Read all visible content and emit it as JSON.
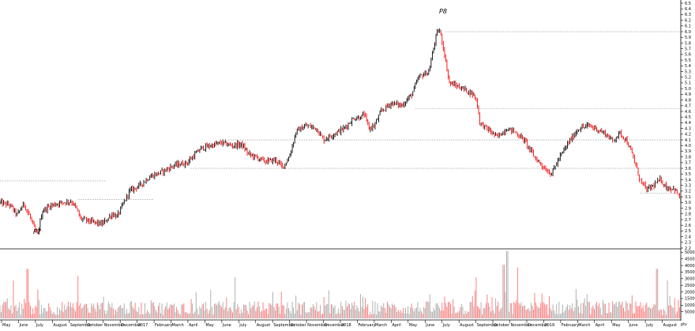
{
  "chart_data": {
    "type": "candlestick",
    "price_axis": {
      "ticks": [
        "2.2",
        "2.3",
        "2.4",
        "2.5",
        "2.6",
        "2.7",
        "2.8",
        "2.9",
        "3.0",
        "3.1",
        "3.2",
        "3.3",
        "3.4",
        "3.5",
        "3.6",
        "3.7",
        "3.8",
        "3.9",
        "4.0",
        "4.1",
        "4.2",
        "4.3",
        "4.4",
        "4.5",
        "4.6",
        "4.7",
        "4.8",
        "4.9",
        "5.0",
        "5.1",
        "5.2",
        "5.3",
        "5.4",
        "5.5",
        "5.6",
        "5.7",
        "5.8",
        "5.9",
        "6.0",
        "6.1",
        "6.2",
        "6.3",
        "6.4",
        "6.5"
      ],
      "range": [
        2.2,
        6.5
      ]
    },
    "volume_axis": {
      "ticks": [
        "5000",
        "10000",
        "15000",
        "20000",
        "25000",
        "30000",
        "35000",
        "40000",
        "45000",
        "50000"
      ],
      "range": [
        0,
        52000
      ]
    },
    "x_labels": [
      "May",
      "June",
      "July",
      "August",
      "September",
      "October",
      "November",
      "December",
      "2017",
      "February",
      "March",
      "April",
      "May",
      "June",
      "July",
      "August",
      "September",
      "October",
      "November",
      "December",
      "2018",
      "February",
      "March",
      "April",
      "May",
      "June",
      "July",
      "August",
      "September",
      "October",
      "November",
      "December",
      "2019",
      "February",
      "March",
      "April",
      "May",
      "June",
      "July",
      "August"
    ],
    "annotations": {
      "low_mark": "P7",
      "high_mark": "P8",
      "corner": "pts"
    },
    "levels": [
      {
        "price": 3.38,
        "from": 0.0,
        "to": 0.155
      },
      {
        "price": 3.05,
        "from": 0.115,
        "to": 0.225
      },
      {
        "price": 4.1,
        "from": 0.335,
        "to": 1.0
      },
      {
        "price": 3.6,
        "from": 0.28,
        "to": 1.0
      },
      {
        "price": 4.65,
        "from": 0.61,
        "to": 1.0
      },
      {
        "price": 6.0,
        "from": 0.655,
        "to": 1.0
      },
      {
        "price": 3.16,
        "from": 0.94,
        "to": 0.995
      }
    ],
    "trend_colors": {
      "up": "#000000",
      "down": "#ff0000"
    },
    "volume_colors": {
      "up": "#b0b0b0",
      "down": "#ff8080"
    },
    "anchors": [
      [
        0,
        3.0
      ],
      [
        0.015,
        2.95
      ],
      [
        0.025,
        2.78
      ],
      [
        0.035,
        2.98
      ],
      [
        0.045,
        2.72
      ],
      [
        0.05,
        2.55
      ],
      [
        0.055,
        2.42
      ],
      [
        0.062,
        2.85
      ],
      [
        0.075,
        2.95
      ],
      [
        0.09,
        3.0
      ],
      [
        0.105,
        3.02
      ],
      [
        0.112,
        2.9
      ],
      [
        0.118,
        2.72
      ],
      [
        0.135,
        2.66
      ],
      [
        0.15,
        2.62
      ],
      [
        0.165,
        2.8
      ],
      [
        0.172,
        2.75
      ],
      [
        0.18,
        2.95
      ],
      [
        0.19,
        3.2
      ],
      [
        0.205,
        3.3
      ],
      [
        0.22,
        3.45
      ],
      [
        0.24,
        3.55
      ],
      [
        0.255,
        3.65
      ],
      [
        0.275,
        3.7
      ],
      [
        0.295,
        3.95
      ],
      [
        0.31,
        4.0
      ],
      [
        0.325,
        4.05
      ],
      [
        0.34,
        4.0
      ],
      [
        0.355,
        4.02
      ],
      [
        0.365,
        3.85
      ],
      [
        0.375,
        3.8
      ],
      [
        0.39,
        3.72
      ],
      [
        0.405,
        3.75
      ],
      [
        0.415,
        3.62
      ],
      [
        0.425,
        3.8
      ],
      [
        0.435,
        4.25
      ],
      [
        0.45,
        4.35
      ],
      [
        0.465,
        4.3
      ],
      [
        0.475,
        4.1
      ],
      [
        0.49,
        4.2
      ],
      [
        0.505,
        4.3
      ],
      [
        0.52,
        4.48
      ],
      [
        0.53,
        4.5
      ],
      [
        0.535,
        4.55
      ],
      [
        0.542,
        4.3
      ],
      [
        0.55,
        4.35
      ],
      [
        0.56,
        4.6
      ],
      [
        0.575,
        4.75
      ],
      [
        0.59,
        4.7
      ],
      [
        0.605,
        4.9
      ],
      [
        0.615,
        5.2
      ],
      [
        0.63,
        5.3
      ],
      [
        0.64,
        5.9
      ],
      [
        0.645,
        6.05
      ],
      [
        0.65,
        5.8
      ],
      [
        0.66,
        5.1
      ],
      [
        0.67,
        5.05
      ],
      [
        0.68,
        5.0
      ],
      [
        0.695,
        4.9
      ],
      [
        0.7,
        4.8
      ],
      [
        0.705,
        4.4
      ],
      [
        0.715,
        4.3
      ],
      [
        0.73,
        4.15
      ],
      [
        0.745,
        4.3
      ],
      [
        0.755,
        4.25
      ],
      [
        0.77,
        4.1
      ],
      [
        0.785,
        3.8
      ],
      [
        0.8,
        3.6
      ],
      [
        0.81,
        3.5
      ],
      [
        0.82,
        3.75
      ],
      [
        0.835,
        4.05
      ],
      [
        0.85,
        4.3
      ],
      [
        0.865,
        4.35
      ],
      [
        0.875,
        4.3
      ],
      [
        0.89,
        4.2
      ],
      [
        0.9,
        4.08
      ],
      [
        0.91,
        4.22
      ],
      [
        0.92,
        4.1
      ],
      [
        0.93,
        3.8
      ],
      [
        0.94,
        3.4
      ],
      [
        0.95,
        3.22
      ],
      [
        0.96,
        3.3
      ],
      [
        0.97,
        3.4
      ],
      [
        0.98,
        3.25
      ],
      [
        0.99,
        3.25
      ],
      [
        1.0,
        3.05
      ]
    ],
    "volume_spikes": [
      [
        0.02,
        0.55
      ],
      [
        0.04,
        0.72
      ],
      [
        0.115,
        0.62
      ],
      [
        0.345,
        0.6
      ],
      [
        0.7,
        0.6
      ],
      [
        0.74,
        0.78
      ],
      [
        0.745,
        0.98
      ],
      [
        0.76,
        0.74
      ],
      [
        0.965,
        0.72
      ],
      [
        0.98,
        0.55
      ]
    ]
  }
}
